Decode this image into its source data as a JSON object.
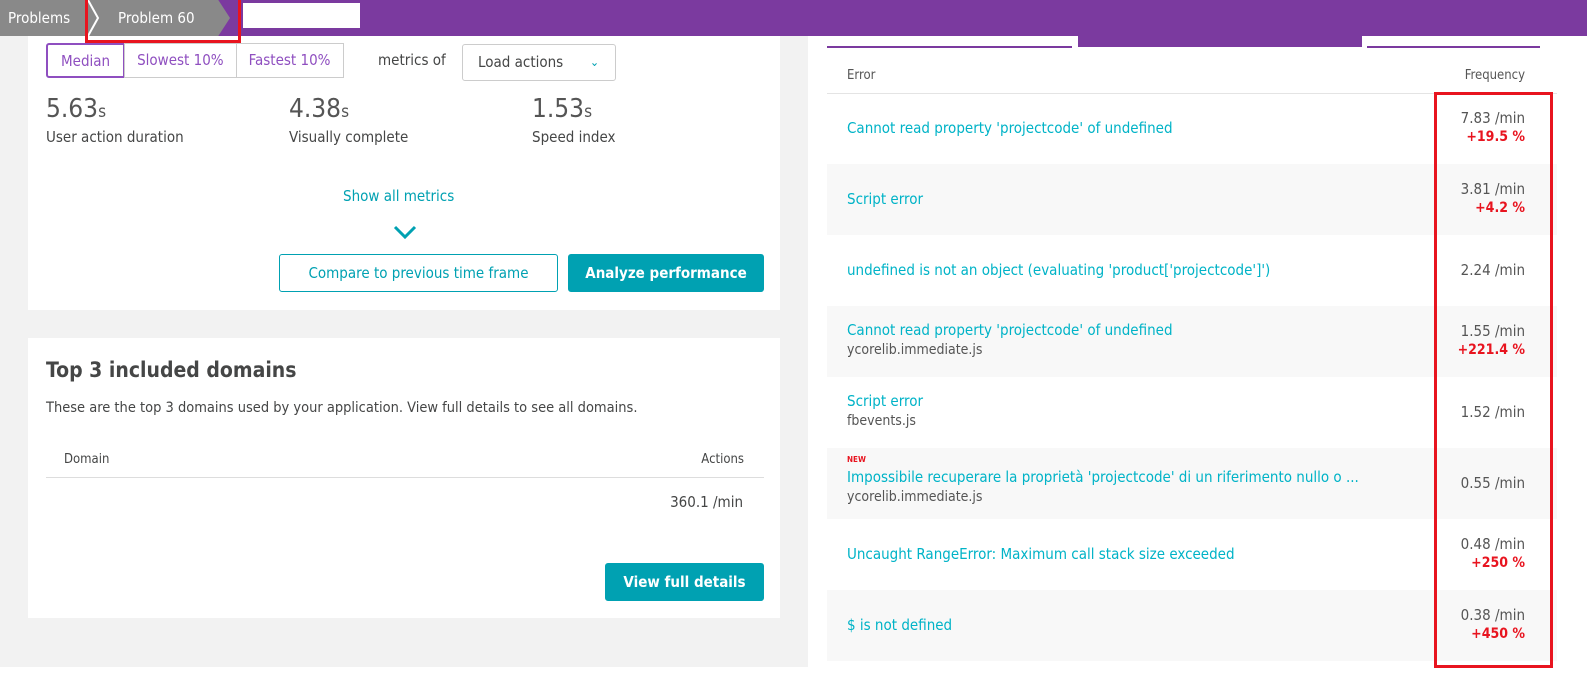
{
  "breadcrumb": {
    "items": [
      "Problems",
      "Problem 60"
    ]
  },
  "performance": {
    "segments": [
      "Median",
      "Slowest 10%",
      "Fastest 10%"
    ],
    "metrics_of_label": "metrics of",
    "action_select": "Load actions",
    "metrics": [
      {
        "value": "5.63",
        "unit": "s",
        "label": "User action duration"
      },
      {
        "value": "4.38",
        "unit": "s",
        "label": "Visually complete"
      },
      {
        "value": "1.53",
        "unit": "s",
        "label": "Speed index"
      }
    ],
    "show_all": "Show all metrics",
    "compare_button": "Compare to previous time frame",
    "analyze_button": "Analyze performance"
  },
  "domains": {
    "title": "Top 3 included domains",
    "description": "These are the top 3 domains used by your application. View full details to see all domains.",
    "columns": [
      "Domain",
      "Actions"
    ],
    "rows": [
      {
        "domain": "",
        "actions": "360.1 /min"
      }
    ],
    "view_button": "View full details"
  },
  "errors": {
    "columns": [
      "Error",
      "Frequency"
    ],
    "rows": [
      {
        "error": "Cannot read property 'projectcode' of undefined",
        "sub": "",
        "new": "",
        "freq": "7.83 /min",
        "change": "+19.5 %"
      },
      {
        "error": "Script error",
        "sub": "",
        "new": "",
        "freq": "3.81 /min",
        "change": "+4.2 %"
      },
      {
        "error": "undefined is not an object (evaluating 'product['projectcode']')",
        "sub": "",
        "new": "",
        "freq": "2.24 /min",
        "change": ""
      },
      {
        "error": "Cannot read property 'projectcode' of undefined",
        "sub": "ycorelib.immediate.js",
        "new": "",
        "freq": "1.55 /min",
        "change": "+221.4 %"
      },
      {
        "error": "Script error",
        "sub": "fbevents.js",
        "new": "",
        "freq": "1.52 /min",
        "change": ""
      },
      {
        "error": "Impossibile recuperare la proprietà 'projectcode' di un riferimento nullo o ...",
        "sub": "ycorelib.immediate.js",
        "new": "NEW",
        "freq": "0.55 /min",
        "change": ""
      },
      {
        "error": "Uncaught RangeError: Maximum call stack size exceeded",
        "sub": "",
        "new": "",
        "freq": "0.48 /min",
        "change": "+250 %"
      },
      {
        "error": "$ is not defined",
        "sub": "",
        "new": "",
        "freq": "0.38 /min",
        "change": "+450 %"
      }
    ]
  },
  "colors": {
    "accent": "#7b3a9f",
    "link": "#00a1b2",
    "alert": "#e8141f"
  }
}
